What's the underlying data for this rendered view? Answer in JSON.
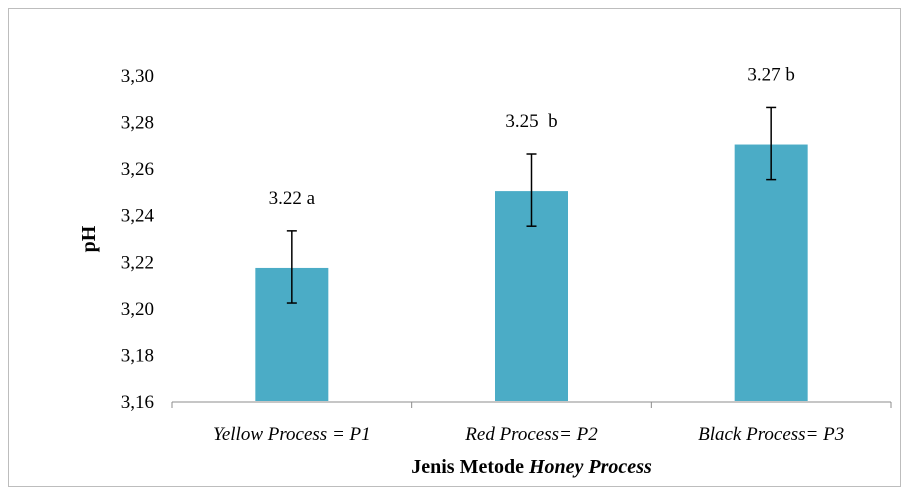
{
  "chart_data": {
    "type": "bar",
    "categories": [
      "Yellow Process = P1",
      "Red Process= P2",
      "Black Process= P3"
    ],
    "values": [
      3.218,
      3.251,
      3.271
    ],
    "error": [
      0.0155,
      0.0155,
      0.0155
    ],
    "data_labels": [
      "3.22 a",
      "3.25  b",
      "3.27 b"
    ],
    "ylabel": "pH",
    "xlabel": {
      "plain": "Jenis Metode ",
      "italic": "Honey Process"
    },
    "ylim": [
      3.16,
      3.3
    ],
    "yticks": [
      "3,16",
      "3,18",
      "3,20",
      "3,22",
      "3,24",
      "3,26",
      "3,28",
      "3,30"
    ],
    "grid": false,
    "legend": "none",
    "bar_color": "#4bacc6",
    "error_color": "#000000"
  }
}
